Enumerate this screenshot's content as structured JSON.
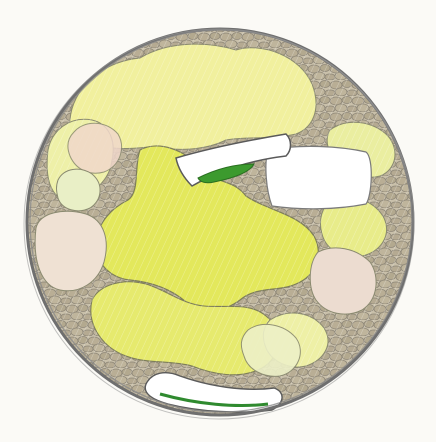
{
  "drawing": {
    "subject": "circle-drawing",
    "colors": {
      "paper": "#fbfaf6",
      "outline": "#6f6f6f",
      "pebble": "#b9ae95",
      "pebble_stroke": "#8e8778",
      "yellow_light": "#f1f09e",
      "yellow_mid": "#e7ea6a",
      "yellow_strong": "#dde54a",
      "green_pale": "#e8efc4",
      "pink": "#e8c8b8",
      "white": "#ffffff",
      "green_accent": "#2f8a2f"
    }
  }
}
